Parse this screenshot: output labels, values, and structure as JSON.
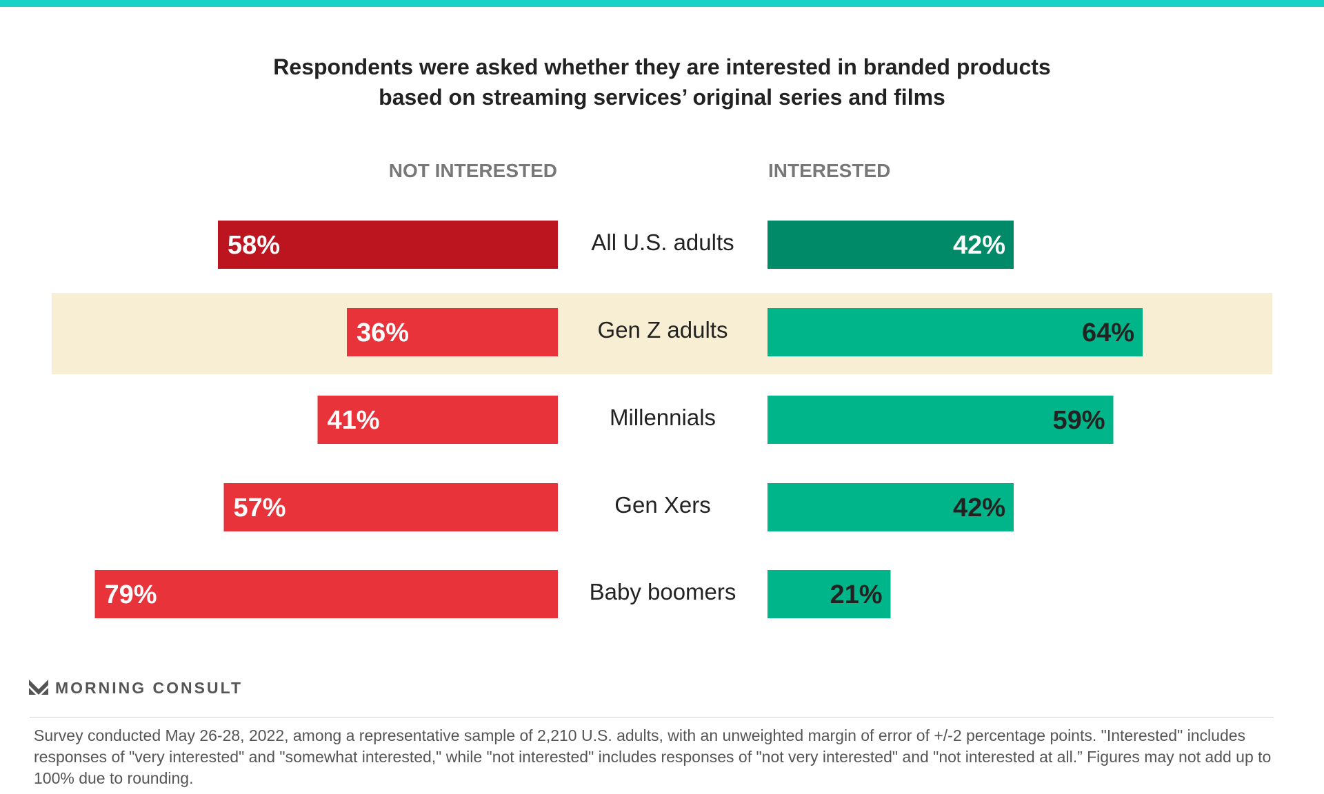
{
  "title_lines": [
    "Respondents were asked whether they are interested in branded products",
    "based on streaming services’ original series and films"
  ],
  "chart_data": {
    "type": "bar",
    "orientation": "diverging-horizontal",
    "title": "Respondents were asked whether they are interested in branded products based on streaming services’ original series and films",
    "categories": [
      "All U.S. adults",
      "Gen Z adults",
      "Millennials",
      "Gen Xers",
      "Baby boomers"
    ],
    "series": [
      {
        "name": "NOT INTERESTED",
        "values": [
          58,
          36,
          41,
          57,
          79
        ],
        "color": "#e8333a",
        "highlight_color": "#bd1520"
      },
      {
        "name": "INTERESTED",
        "values": [
          42,
          64,
          59,
          42,
          21
        ],
        "color": "#00b589",
        "highlight_color": "#008a67"
      }
    ],
    "value_labels": {
      "not_interested": [
        "58%",
        "36%",
        "41%",
        "57%",
        "79%"
      ],
      "interested": [
        "42%",
        "64%",
        "59%",
        "42%",
        "21%"
      ]
    },
    "highlighted_category": "Gen Z adults",
    "highlight_band_color": "#f7eed3",
    "emphasized_category": "All U.S. adults",
    "unit": "%"
  },
  "headers": {
    "left": "NOT INTERESTED",
    "right": "INTERESTED"
  },
  "brand": {
    "name": "MORNING CONSULT",
    "accent": "#17d2c6"
  },
  "footnote": "Survey conducted May 26-28, 2022, among a representative sample of 2,210 U.S. adults, with an unweighted margin of error of +/-2 percentage points. \"Interested\" includes responses of \"very interested\" and \"somewhat interested,\" while \"not interested\" includes responses of \"not very interested\" and \"not interested at all.” Figures may not add up to 100% due to rounding."
}
